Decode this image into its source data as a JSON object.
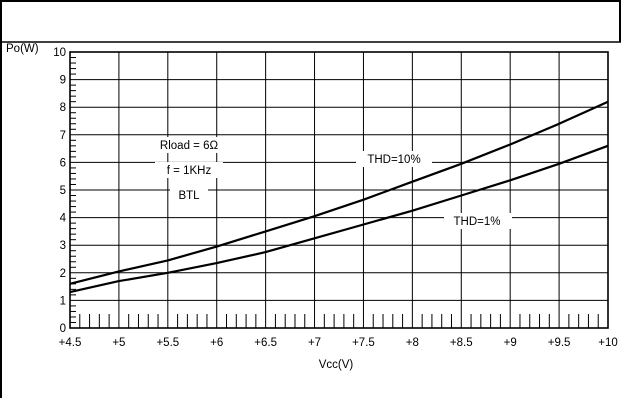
{
  "chart_data": {
    "type": "line",
    "ylabel": "Po(W)",
    "xlabel": "Vcc(V)",
    "xlim": [
      4.5,
      10
    ],
    "ylim": [
      0,
      10
    ],
    "x_ticks": [
      4.5,
      5,
      5.5,
      6,
      6.5,
      7,
      7.5,
      8,
      8.5,
      9,
      9.5,
      10
    ],
    "x_tick_labels": [
      "+4.5",
      "+5",
      "+5.5",
      "+6",
      "+6.5",
      "+7",
      "+7.5",
      "+8",
      "+8.5",
      "+9",
      "+9.5",
      "+10"
    ],
    "y_ticks": [
      0,
      1,
      2,
      3,
      4,
      5,
      6,
      7,
      8,
      9,
      10
    ],
    "y_tick_labels": [
      "0",
      "1",
      "2",
      "3",
      "4",
      "5",
      "6",
      "7",
      "8",
      "9",
      "10"
    ],
    "grid": true,
    "conditions": [
      "Rload = 6Ω",
      "f = 1KHz",
      "BTL"
    ],
    "series": [
      {
        "name": "THD=10%",
        "x": [
          4.5,
          5,
          5.5,
          6,
          6.5,
          7,
          7.5,
          8,
          8.5,
          9,
          9.5,
          10
        ],
        "y": [
          1.6,
          2.05,
          2.45,
          2.95,
          3.5,
          4.05,
          4.65,
          5.3,
          5.95,
          6.65,
          7.4,
          8.2
        ]
      },
      {
        "name": "THD=1%",
        "x": [
          4.5,
          5,
          5.5,
          6,
          6.5,
          7,
          7.5,
          8,
          8.5,
          9,
          9.5,
          10
        ],
        "y": [
          1.3,
          1.7,
          2.0,
          2.35,
          2.75,
          3.25,
          3.75,
          4.25,
          4.8,
          5.35,
          5.95,
          6.6
        ]
      }
    ]
  }
}
